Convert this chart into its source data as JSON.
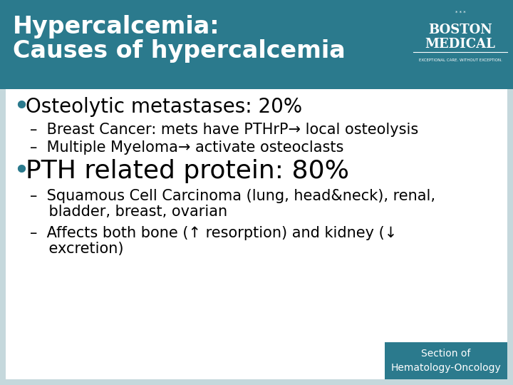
{
  "bg_color": "#c5d8dc",
  "teal_header_color": "#2b7a8d",
  "white_content": "#ffffff",
  "title_line1": "Hypercalcemia:",
  "title_line2": "Causes of hypercalcemia",
  "title_color": "#ffffff",
  "bullet_dot_color": "#2b7a8d",
  "text_color": "#000000",
  "bullet1": "Osteolytic metastases: 20%",
  "sub1a": "–  Breast Cancer: mets have PTHrP→ local osteolysis",
  "sub1b": "–  Multiple Myeloma→ activate osteoclasts",
  "bullet2": "PTH related protein: 80%",
  "sub2a_line1": "–  Squamous Cell Carcinoma (lung, head&neck), renal,",
  "sub2a_line2": "    bladder, breast, ovarian",
  "sub2b_line1": "–  Affects both bone (↑ resorption) and kidney (↓",
  "sub2b_line2": "    excretion)",
  "footer_text": "Section of\nHematology-Oncology",
  "footer_bg": "#2b7a8d",
  "footer_text_color": "#ffffff",
  "logo_bg": "#2b7a8d",
  "logo_text1": "BOSTON",
  "logo_text2": "MEDICAL",
  "logo_subtext": "EXCEPTIONAL CARE. WITHOUT EXCEPTION.",
  "bullet1_size": 20,
  "bullet2_size": 26,
  "sub_size": 15,
  "title_size1": 24,
  "title_size2": 24
}
